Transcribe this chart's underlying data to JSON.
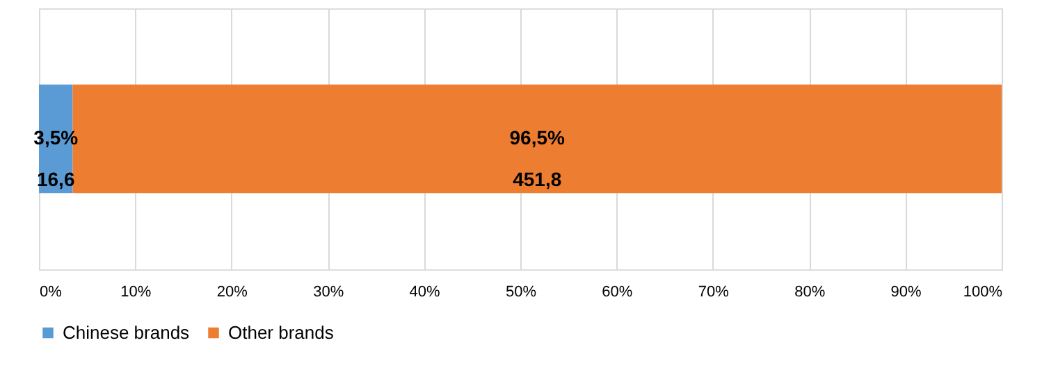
{
  "chart_data": {
    "type": "bar",
    "orientation": "horizontal",
    "stacked": true,
    "categories": [
      null
    ],
    "series": [
      {
        "name": "Chinese brands",
        "color": "#5b9bd5",
        "values": [
          3.5
        ],
        "value_labels": [
          "3,5%\n16,6"
        ]
      },
      {
        "name": "Other brands",
        "color": "#ed7d31",
        "values": [
          96.5
        ],
        "value_labels": [
          "96,5%\n451,8"
        ]
      }
    ],
    "xlim": [
      0,
      100
    ],
    "xticks": [
      {
        "value": 0,
        "label": "0%"
      },
      {
        "value": 10,
        "label": "10%"
      },
      {
        "value": 20,
        "label": "20%"
      },
      {
        "value": 30,
        "label": "30%"
      },
      {
        "value": 40,
        "label": "40%"
      },
      {
        "value": 50,
        "label": "50%"
      },
      {
        "value": 60,
        "label": "60%"
      },
      {
        "value": 70,
        "label": "70%"
      },
      {
        "value": 80,
        "label": "80%"
      },
      {
        "value": 90,
        "label": "90%"
      },
      {
        "value": 100,
        "label": "100%"
      }
    ],
    "grid": "x",
    "legend": "bottom"
  }
}
